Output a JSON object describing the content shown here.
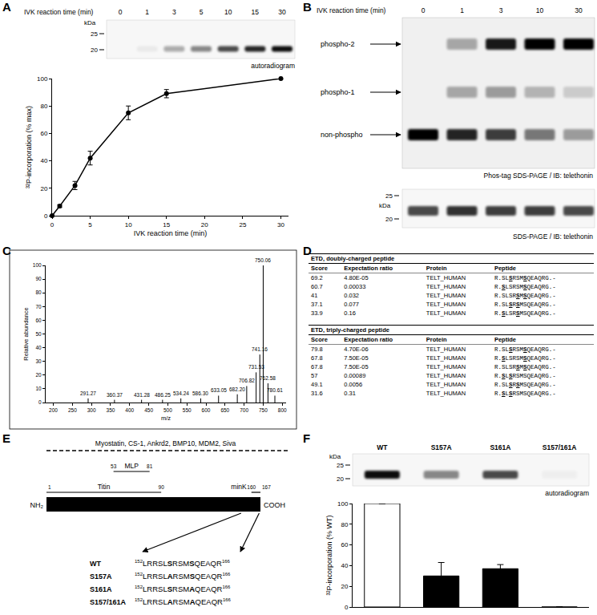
{
  "panel_letters": [
    "A",
    "B",
    "C",
    "D",
    "E",
    "F"
  ],
  "chart_data": [
    {
      "type": "line",
      "x": [
        0,
        1,
        3,
        5,
        10,
        15,
        30
      ],
      "values": [
        0,
        7,
        22,
        42,
        75,
        89,
        100
      ],
      "errors": [
        0,
        1,
        3,
        5,
        5,
        3,
        0
      ],
      "xlabel": "IVK reaction time (min)",
      "ylabel": "³²P-incorporation (% max)",
      "xlim": [
        0,
        31
      ],
      "xticks": [
        0,
        5,
        10,
        15,
        20,
        25,
        30
      ],
      "ylim": [
        0,
        100
      ],
      "yticks": [
        0,
        20,
        40,
        60,
        80,
        100
      ],
      "color": "#000000",
      "marker": "circle",
      "grid": false
    },
    {
      "type": "stem",
      "x": [
        291.27,
        360.37,
        431.28,
        486.25,
        534.24,
        586.3,
        633.05,
        682.2,
        706.82,
        731.53,
        741.16,
        750.06,
        762.58,
        780.61
      ],
      "values": [
        3,
        2,
        2,
        2,
        3,
        3,
        5,
        6,
        12,
        22,
        35,
        100,
        14,
        5
      ],
      "peak_labels": [
        "291.27",
        "360.37",
        "431.28",
        "486.25",
        "534.24",
        "586.30",
        "633.05",
        "682.20",
        "706.82",
        "731.53",
        "741.16",
        "750.06",
        "762.58",
        "780.61"
      ],
      "xlabel": "m/z",
      "ylabel": "Relative abundance",
      "xlim": [
        180,
        810
      ],
      "xticks": [
        200,
        250,
        300,
        350,
        400,
        450,
        500,
        550,
        600,
        650,
        700,
        750,
        800
      ],
      "ylim": [
        0,
        100
      ],
      "yticks": [
        0,
        10,
        20,
        30,
        40,
        50,
        60,
        70,
        80,
        90,
        100
      ],
      "color": "#000000",
      "grid": false
    },
    {
      "type": "bar",
      "categories": [
        "WT",
        "S157A",
        "S161A",
        "S157/161A"
      ],
      "values": [
        100,
        30,
        37,
        0
      ],
      "errors": [
        0,
        13,
        4,
        0
      ],
      "colors": [
        "#ffffff",
        "#000000",
        "#000000",
        "#000000"
      ],
      "ylabel": "³²P-incorporation (% WT)",
      "ylim": [
        0,
        100
      ],
      "yticks": [
        0,
        20,
        40,
        60,
        80,
        100
      ],
      "tick_labels": "y",
      "grid": false
    }
  ],
  "blot_A": {
    "header": "IVK reaction time (min)",
    "lanes": [
      0,
      1,
      3,
      5,
      10,
      15,
      30
    ],
    "unit": "kDa",
    "markers": [
      25,
      20
    ],
    "band_intensity": [
      0,
      0.05,
      0.3,
      0.45,
      0.7,
      0.85,
      0.95
    ],
    "caption": "autoradiogram"
  },
  "blot_B": {
    "header": "IVK reaction time (min)",
    "lanes": [
      0,
      1,
      3,
      10,
      30
    ],
    "rows": [
      {
        "label": "phospho-2",
        "band_intensity": [
          0,
          0.3,
          0.9,
          1,
          1
        ]
      },
      {
        "label": "phospho-1",
        "band_intensity": [
          0,
          0.3,
          0.35,
          0.25,
          0.15
        ]
      },
      {
        "label": "non-phospho",
        "band_intensity": [
          1,
          0.85,
          0.75,
          0.5,
          0.35
        ]
      }
    ],
    "caption": "Phos-tag SDS-PAGE / IB: telethonin",
    "lower": {
      "unit": "kDa",
      "markers": [
        25,
        20
      ],
      "band_intensity": [
        0.7,
        0.8,
        0.75,
        0.75,
        0.7
      ],
      "caption": "SDS-PAGE / IB: telethonin"
    }
  },
  "tables_D": [
    {
      "title": "ETD, doubly-charged peptide",
      "columns": [
        "Score",
        "Expectation ratio",
        "Protein",
        "Peptide"
      ],
      "rows": [
        {
          "score": 69.2,
          "expectation": "4.80E-05",
          "protein": "TELT_HUMAN",
          "peptide": "R.SLSRSMSQEAQRG.-",
          "bold": [
            4,
            8
          ]
        },
        {
          "score": 60.7,
          "expectation": "0.00033",
          "protein": "TELT_HUMAN",
          "peptide": "R.SLSRSMSQEAQRG.-",
          "bold": [
            2,
            8
          ]
        },
        {
          "score": 41,
          "expectation": "0.032",
          "protein": "TELT_HUMAN",
          "peptide": "R.SLSRSMSQEAQRG.-",
          "bold": [
            6,
            8
          ]
        },
        {
          "score": 37.1,
          "expectation": "0.077",
          "protein": "TELT_HUMAN",
          "peptide": "R.SLSRSMSQEAQRG.-",
          "bold": [
            4,
            6
          ]
        },
        {
          "score": 33.9,
          "expectation": "0.16",
          "protein": "TELT_HUMAN",
          "peptide": "R.SLSRSMSQEAQRG.-",
          "bold": [
            2,
            6
          ]
        }
      ]
    },
    {
      "title": "ETD, triply-charged peptide",
      "columns": [
        "Score",
        "Expectation ratio",
        "Protein",
        "Peptide"
      ],
      "rows": [
        {
          "score": 79.8,
          "expectation": "4.70E-06",
          "protein": "TELT_HUMAN",
          "peptide": "R.SLSRSMSQEAQRG.-",
          "bold": [
            4,
            8
          ]
        },
        {
          "score": 67.8,
          "expectation": "7.50E-05",
          "protein": "TELT_HUMAN",
          "peptide": "R.SLSRSMSQEAQRG.-",
          "bold": [
            2,
            8
          ]
        },
        {
          "score": 67.8,
          "expectation": "7.50E-05",
          "protein": "TELT_HUMAN",
          "peptide": "R.SLSRSMSQEAQRG.-",
          "bold": [
            6,
            8
          ]
        },
        {
          "score": 57,
          "expectation": "0.00089",
          "protein": "TELT_HUMAN",
          "peptide": "R.SLSRSMSQEAQRG.-",
          "bold": [
            2,
            4
          ]
        },
        {
          "score": 49.1,
          "expectation": "0.0056",
          "protein": "TELT_HUMAN",
          "peptide": "R.SLSRSMSQEAQRG.-",
          "bold": [
            4,
            6
          ]
        },
        {
          "score": 31.6,
          "expectation": "0.31",
          "protein": "TELT_HUMAN",
          "peptide": "R.SLSRSMSQEAQRG.-",
          "bold": [
            2,
            4
          ]
        }
      ]
    }
  ],
  "diagram_E": {
    "partners": "Myostatin, CS-1, Ankrd2, BMP10, MDM2, Siva",
    "n_term": "NH₂",
    "c_term": "COOH",
    "domains": [
      {
        "name": "MLP",
        "start": 53,
        "end": 81
      },
      {
        "name": "Titin",
        "start": 1,
        "end": 90
      },
      {
        "name": "minK",
        "start": 160,
        "end": 167
      }
    ],
    "constructs": [
      {
        "name": "WT",
        "start": 152,
        "end": 166,
        "sequence": "LRRSLSRSMSQEAQR",
        "bold": [
          5,
          9
        ]
      },
      {
        "name": "S157A",
        "start": 152,
        "end": 166,
        "sequence": "LRRSLARSMSQEAQR",
        "bold": [
          5,
          9
        ]
      },
      {
        "name": "S161A",
        "start": 152,
        "end": 166,
        "sequence": "LRRSLSRSMAQEAQR",
        "bold": [
          5,
          9
        ]
      },
      {
        "name": "S157/161A",
        "start": 152,
        "end": 166,
        "sequence": "LRRSLARSMAQEAQR",
        "bold": [
          5,
          9
        ]
      }
    ]
  },
  "blot_F": {
    "unit": "kDa",
    "markers": [
      25,
      20
    ],
    "band_intensity": [
      0.95,
      0.45,
      0.7,
      0.03
    ],
    "caption": "autoradiogram"
  }
}
